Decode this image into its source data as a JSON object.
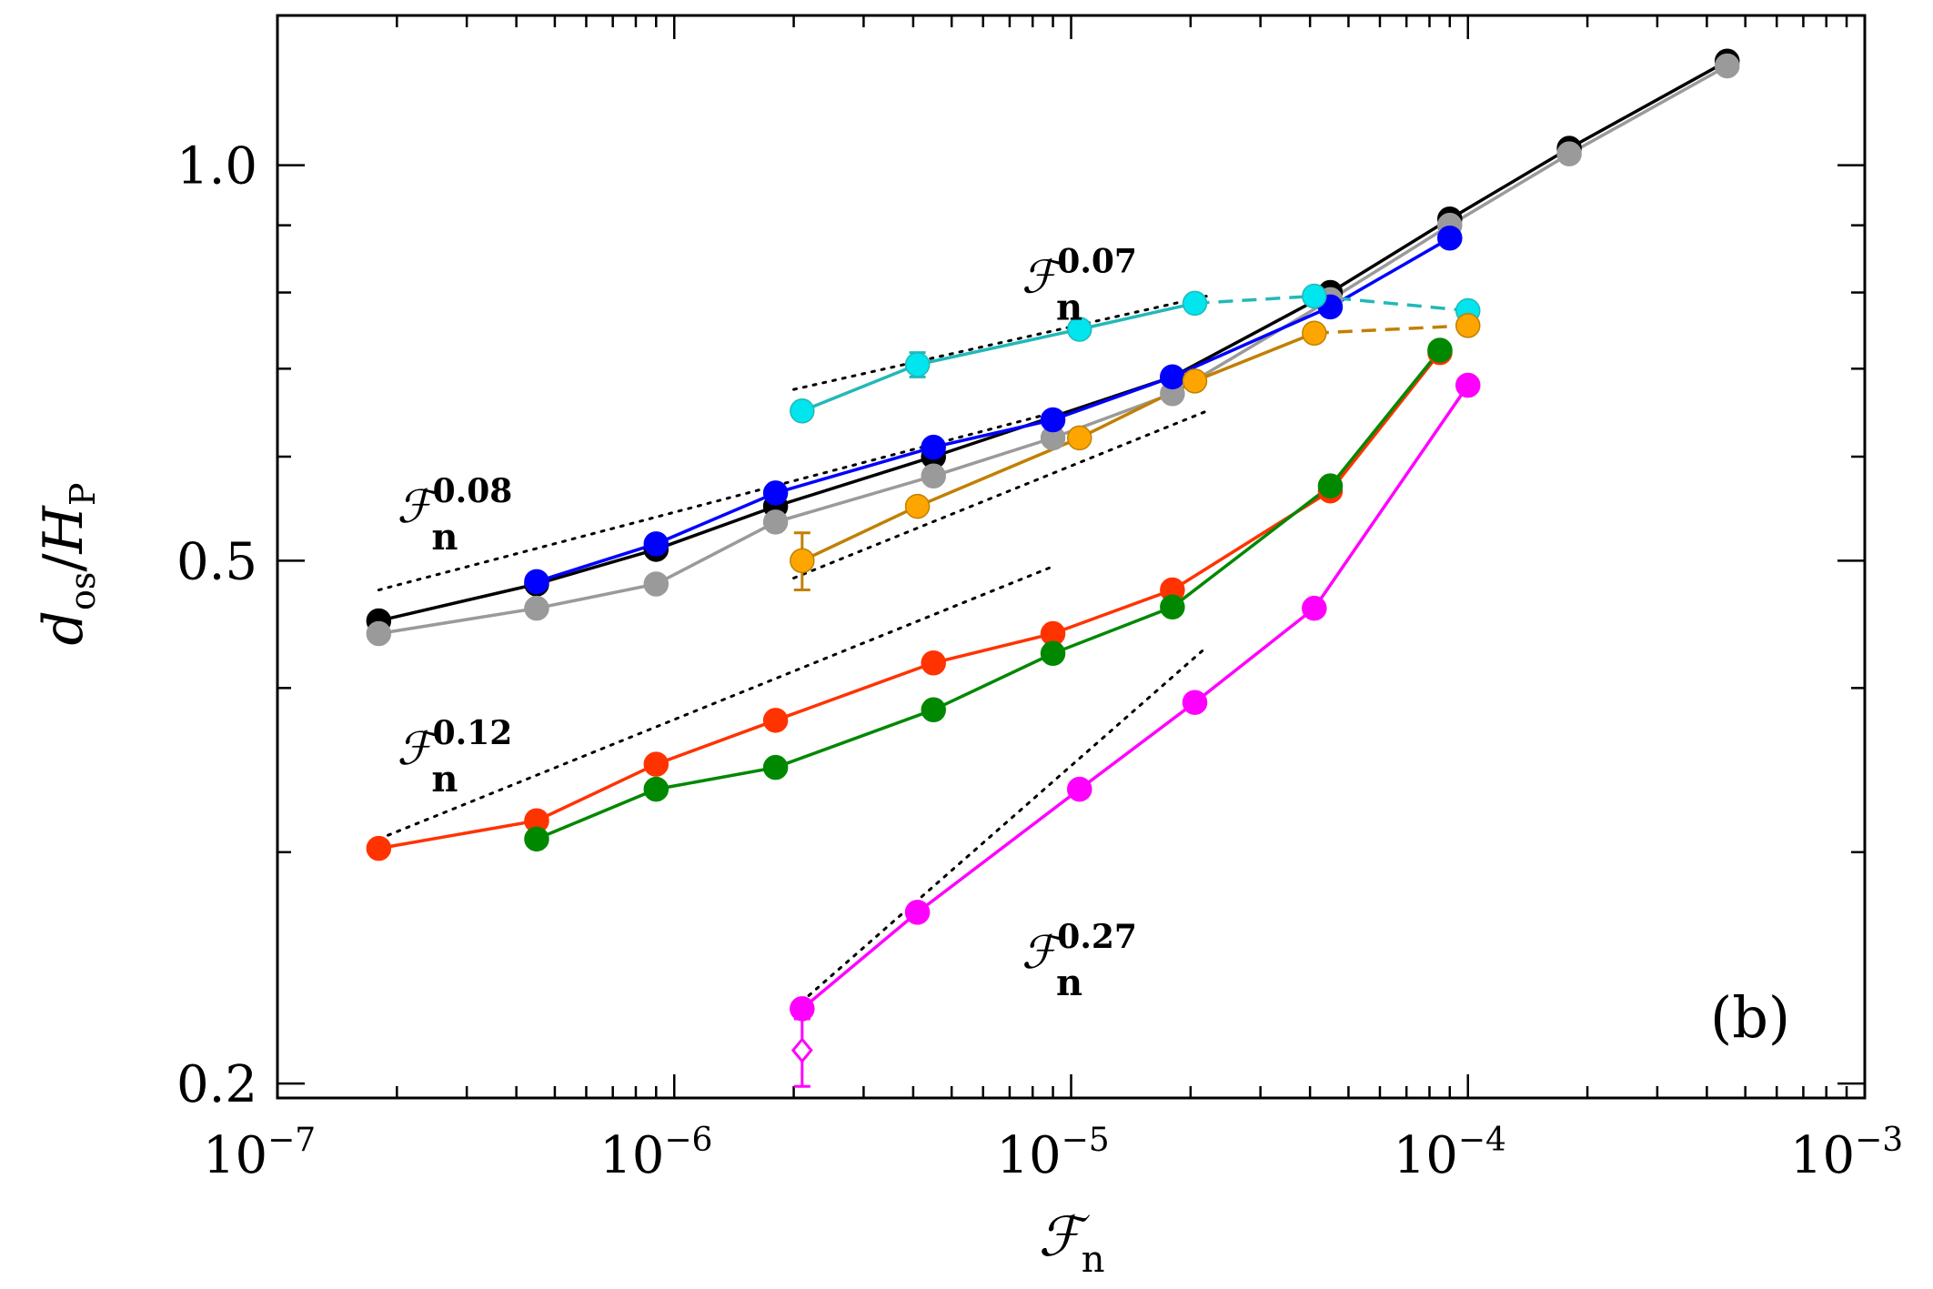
{
  "chart_data": {
    "type": "line",
    "panel_label": "(b)",
    "xlabel": "ℱ",
    "xlabel_sub": "n",
    "ylabel": "d",
    "ylabel_sub": "os",
    "ylabel_mid": "/",
    "ylabel_h": "H",
    "ylabel_h_sub": "P",
    "x_scale": "log",
    "y_scale": "log",
    "xlim": [
      1e-07,
      0.001
    ],
    "ylim": [
      0.195,
      1.3
    ],
    "x_ticks": [
      {
        "value": 1e-07,
        "base": "10",
        "exp": "−7"
      },
      {
        "value": 1e-06,
        "base": "10",
        "exp": "−6"
      },
      {
        "value": 1e-05,
        "base": "10",
        "exp": "−5"
      },
      {
        "value": 0.0001,
        "base": "10",
        "exp": "−4"
      },
      {
        "value": 0.001,
        "base": "10",
        "exp": "−3"
      }
    ],
    "y_ticks": [
      {
        "value": 0.2,
        "label": "0.2"
      },
      {
        "value": 0.5,
        "label": "0.5"
      },
      {
        "value": 1.0,
        "label": "1.0"
      }
    ],
    "series": [
      {
        "name": "black",
        "color": "#000000",
        "x": [
          1.8e-07,
          4.5e-07,
          9e-07,
          1.8e-06,
          4.5e-06,
          1.8e-05,
          4.5e-05,
          9e-05,
          0.00018,
          0.00045
        ],
        "y": [
          0.45,
          0.48,
          0.51,
          0.55,
          0.6,
          0.69,
          0.8,
          0.91,
          1.03,
          1.2
        ]
      },
      {
        "name": "gray",
        "color": "#9a9a9a",
        "x": [
          1.8e-07,
          4.5e-07,
          9e-07,
          1.8e-06,
          4.5e-06,
          9e-06,
          1.8e-05,
          4.5e-05,
          9e-05,
          0.00018,
          0.00045
        ],
        "y": [
          0.44,
          0.46,
          0.48,
          0.535,
          0.58,
          0.62,
          0.67,
          0.79,
          0.9,
          1.02,
          1.19
        ]
      },
      {
        "name": "blue",
        "color": "#0000ff",
        "x": [
          4.5e-07,
          9e-07,
          1.8e-06,
          4.5e-06,
          9e-06,
          1.8e-05,
          4.5e-05,
          9e-05
        ],
        "y": [
          0.482,
          0.515,
          0.563,
          0.61,
          0.64,
          0.69,
          0.78,
          0.88
        ]
      },
      {
        "name": "cyan",
        "color": "#00e5ee",
        "line_color": "#22b8b8",
        "x": [
          2.1e-06,
          4.1e-06,
          1.05e-05,
          2.05e-05,
          4.1e-05,
          0.0001
        ],
        "y": [
          0.65,
          0.705,
          0.75,
          0.785,
          0.795,
          0.775
        ],
        "dashed_after_index": 3
      },
      {
        "name": "orange",
        "color": "#ffa500",
        "line_color": "#c08000",
        "x": [
          2.1e-06,
          4.1e-06,
          1.05e-05,
          2.05e-05,
          4.1e-05,
          0.0001
        ],
        "y": [
          0.5,
          0.55,
          0.62,
          0.685,
          0.745,
          0.755
        ],
        "dashed_after_index": 4
      },
      {
        "name": "red",
        "color": "#ff3300",
        "x": [
          1.8e-07,
          4.5e-07,
          9e-07,
          1.8e-06,
          4.5e-06,
          9e-06,
          1.8e-05,
          4.5e-05,
          8.5e-05
        ],
        "y": [
          0.302,
          0.317,
          0.35,
          0.378,
          0.418,
          0.44,
          0.475,
          0.565,
          0.72
        ]
      },
      {
        "name": "green",
        "color": "#008800",
        "x": [
          4.5e-07,
          9e-07,
          1.8e-06,
          4.5e-06,
          9e-06,
          1.8e-05,
          4.5e-05,
          8.5e-05
        ],
        "y": [
          0.307,
          0.335,
          0.348,
          0.385,
          0.425,
          0.461,
          0.57,
          0.723
        ]
      },
      {
        "name": "magenta",
        "color": "#ff00ff",
        "x": [
          2.1e-06,
          4.1e-06,
          1.05e-05,
          2.05e-05,
          4.1e-05,
          0.0001
        ],
        "y": [
          0.228,
          0.27,
          0.335,
          0.39,
          0.46,
          0.68
        ]
      }
    ],
    "extra_points": [
      {
        "name": "magenta-diamond",
        "color": "#ff00ff",
        "x": 2.1e-06,
        "y": 0.212,
        "err_lo": 0.199,
        "err_hi": 0.224
      }
    ],
    "error_bars": [
      {
        "series": "orange",
        "x": 2.1e-06,
        "y": 0.5,
        "lo": 0.475,
        "hi": 0.525
      },
      {
        "series": "cyan",
        "x": 4.1e-06,
        "y": 0.705,
        "lo": 0.69,
        "hi": 0.72
      },
      {
        "series": "red",
        "x": 4.5e-05,
        "y": 0.565,
        "lo": 0.557,
        "hi": 0.573
      }
    ],
    "fit_lines": [
      {
        "label": "ℱ",
        "sub": "n",
        "exponent": "0.07",
        "x": [
          2e-06,
          2.2e-05
        ],
        "y": [
          0.675,
          0.795
        ]
      },
      {
        "label": "ℱ",
        "sub": "n",
        "exponent": "0.08",
        "x": [
          1.8e-07,
          9e-06
        ],
        "y": [
          0.475,
          0.648
        ]
      },
      {
        "label": "ℱ",
        "sub": "n",
        "exponent": "0.12",
        "x": [
          1.8e-07,
          9e-06
        ],
        "y": [
          0.307,
          0.495
        ]
      },
      {
        "label": "ℱ",
        "sub": "n",
        "exponent": "0.27",
        "x": [
          2e-06,
          2.2e-05
        ],
        "y": [
          0.228,
          0.43
        ]
      },
      {
        "label": "",
        "sub": "",
        "exponent": "",
        "x": [
          2e-06,
          2.2e-05
        ],
        "y": [
          0.485,
          0.65
        ]
      }
    ],
    "annotations": [
      {
        "text": "ℱ",
        "sub": "n",
        "sup": "0.07",
        "anchor_x": 7.5e-06,
        "anchor_y": 0.8
      },
      {
        "text": "ℱ",
        "sub": "n",
        "sup": "0.08",
        "anchor_x": 2e-07,
        "anchor_y": 0.535
      },
      {
        "text": "ℱ",
        "sub": "n",
        "sup": "0.12",
        "anchor_x": 2e-07,
        "anchor_y": 0.35
      },
      {
        "text": "ℱ",
        "sub": "n",
        "sup": "0.27",
        "anchor_x": 7.5e-06,
        "anchor_y": 0.245
      }
    ]
  }
}
